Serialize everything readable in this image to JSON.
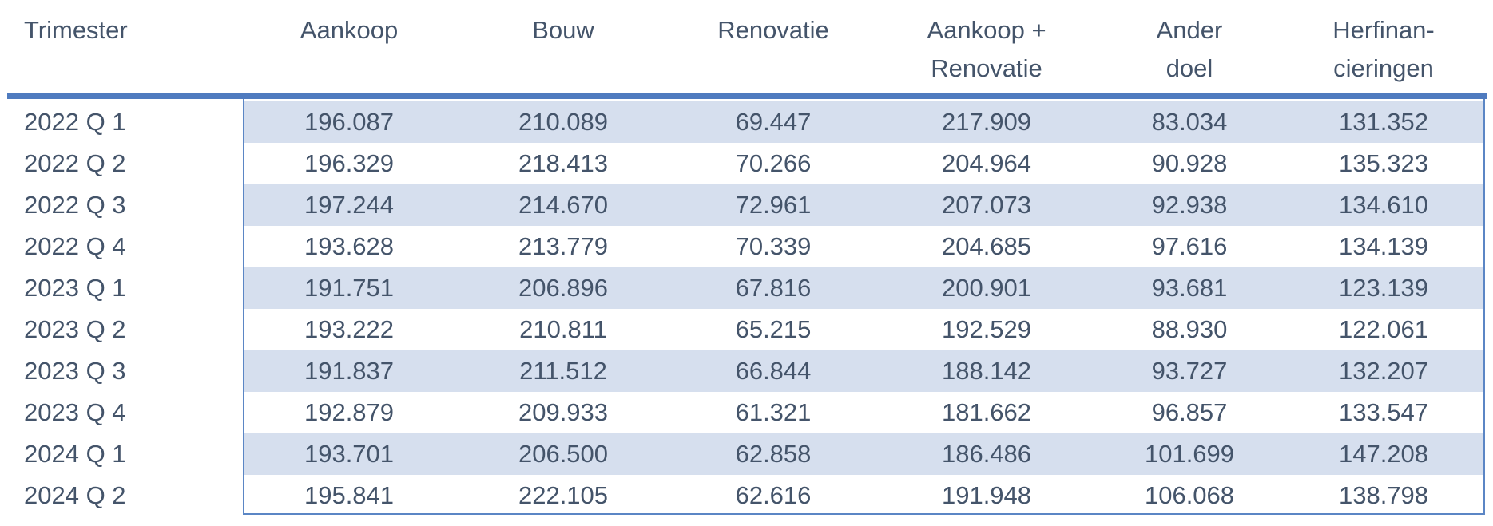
{
  "table": {
    "headers": [
      {
        "lines": [
          "Trimester"
        ]
      },
      {
        "lines": [
          "Aankoop"
        ]
      },
      {
        "lines": [
          "Bouw"
        ]
      },
      {
        "lines": [
          "Renovatie"
        ]
      },
      {
        "lines": [
          "Aankoop +",
          "Renovatie"
        ]
      },
      {
        "lines": [
          "Ander",
          "doel"
        ]
      },
      {
        "lines": [
          "Herfinan-",
          "cieringen"
        ]
      }
    ],
    "rows": [
      [
        "2022 Q 1",
        "196.087",
        "210.089",
        "69.447",
        "217.909",
        "83.034",
        "131.352"
      ],
      [
        "2022 Q 2",
        "196.329",
        "218.413",
        "70.266",
        "204.964",
        "90.928",
        "135.323"
      ],
      [
        "2022 Q 3",
        "197.244",
        "214.670",
        "72.961",
        "207.073",
        "92.938",
        "134.610"
      ],
      [
        "2022 Q 4",
        "193.628",
        "213.779",
        "70.339",
        "204.685",
        "97.616",
        "134.139"
      ],
      [
        "2023 Q 1",
        "191.751",
        "206.896",
        "67.816",
        "200.901",
        "93.681",
        "123.139"
      ],
      [
        "2023 Q 2",
        "193.222",
        "210.811",
        "65.215",
        "192.529",
        "88.930",
        "122.061"
      ],
      [
        "2023 Q 3",
        "191.837",
        "211.512",
        "66.844",
        "188.142",
        "93.727",
        "132.207"
      ],
      [
        "2023 Q 4",
        "192.879",
        "209.933",
        "61.321",
        "181.662",
        "96.857",
        "133.547"
      ],
      [
        "2024 Q 1",
        "193.701",
        "206.500",
        "62.858",
        "186.486",
        "101.699",
        "147.208"
      ],
      [
        "2024 Q 2",
        "195.841",
        "222.105",
        "62.616",
        "191.948",
        "106.068",
        "138.798"
      ]
    ]
  },
  "colors": {
    "accent": "#4f7bbf",
    "band": "#d6dfee",
    "text": "#44546a"
  }
}
